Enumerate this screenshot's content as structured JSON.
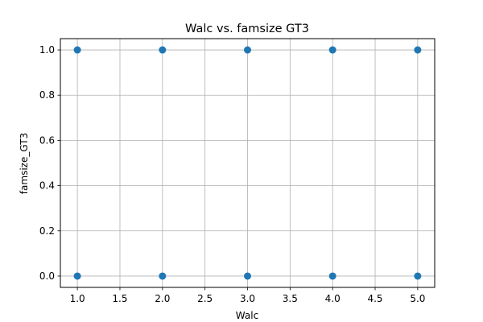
{
  "chart_data": {
    "type": "scatter",
    "title": "Walc vs. famsize GT3",
    "xlabel": "Walc",
    "ylabel": "famsize_GT3",
    "xlim": [
      0.8,
      5.2
    ],
    "ylim": [
      -0.05,
      1.05
    ],
    "xticks": [
      "1.0",
      "1.5",
      "2.0",
      "2.5",
      "3.0",
      "3.5",
      "4.0",
      "4.5",
      "5.0"
    ],
    "yticks": [
      "0.0",
      "0.2",
      "0.4",
      "0.6",
      "0.8",
      "1.0"
    ],
    "grid": true,
    "point_color": "#1f77b4",
    "series": [
      {
        "x": [
          1,
          2,
          3,
          4,
          5,
          1,
          2,
          3,
          4,
          5
        ],
        "y": [
          1,
          1,
          1,
          1,
          1,
          0,
          0,
          0,
          0,
          0
        ]
      }
    ]
  }
}
